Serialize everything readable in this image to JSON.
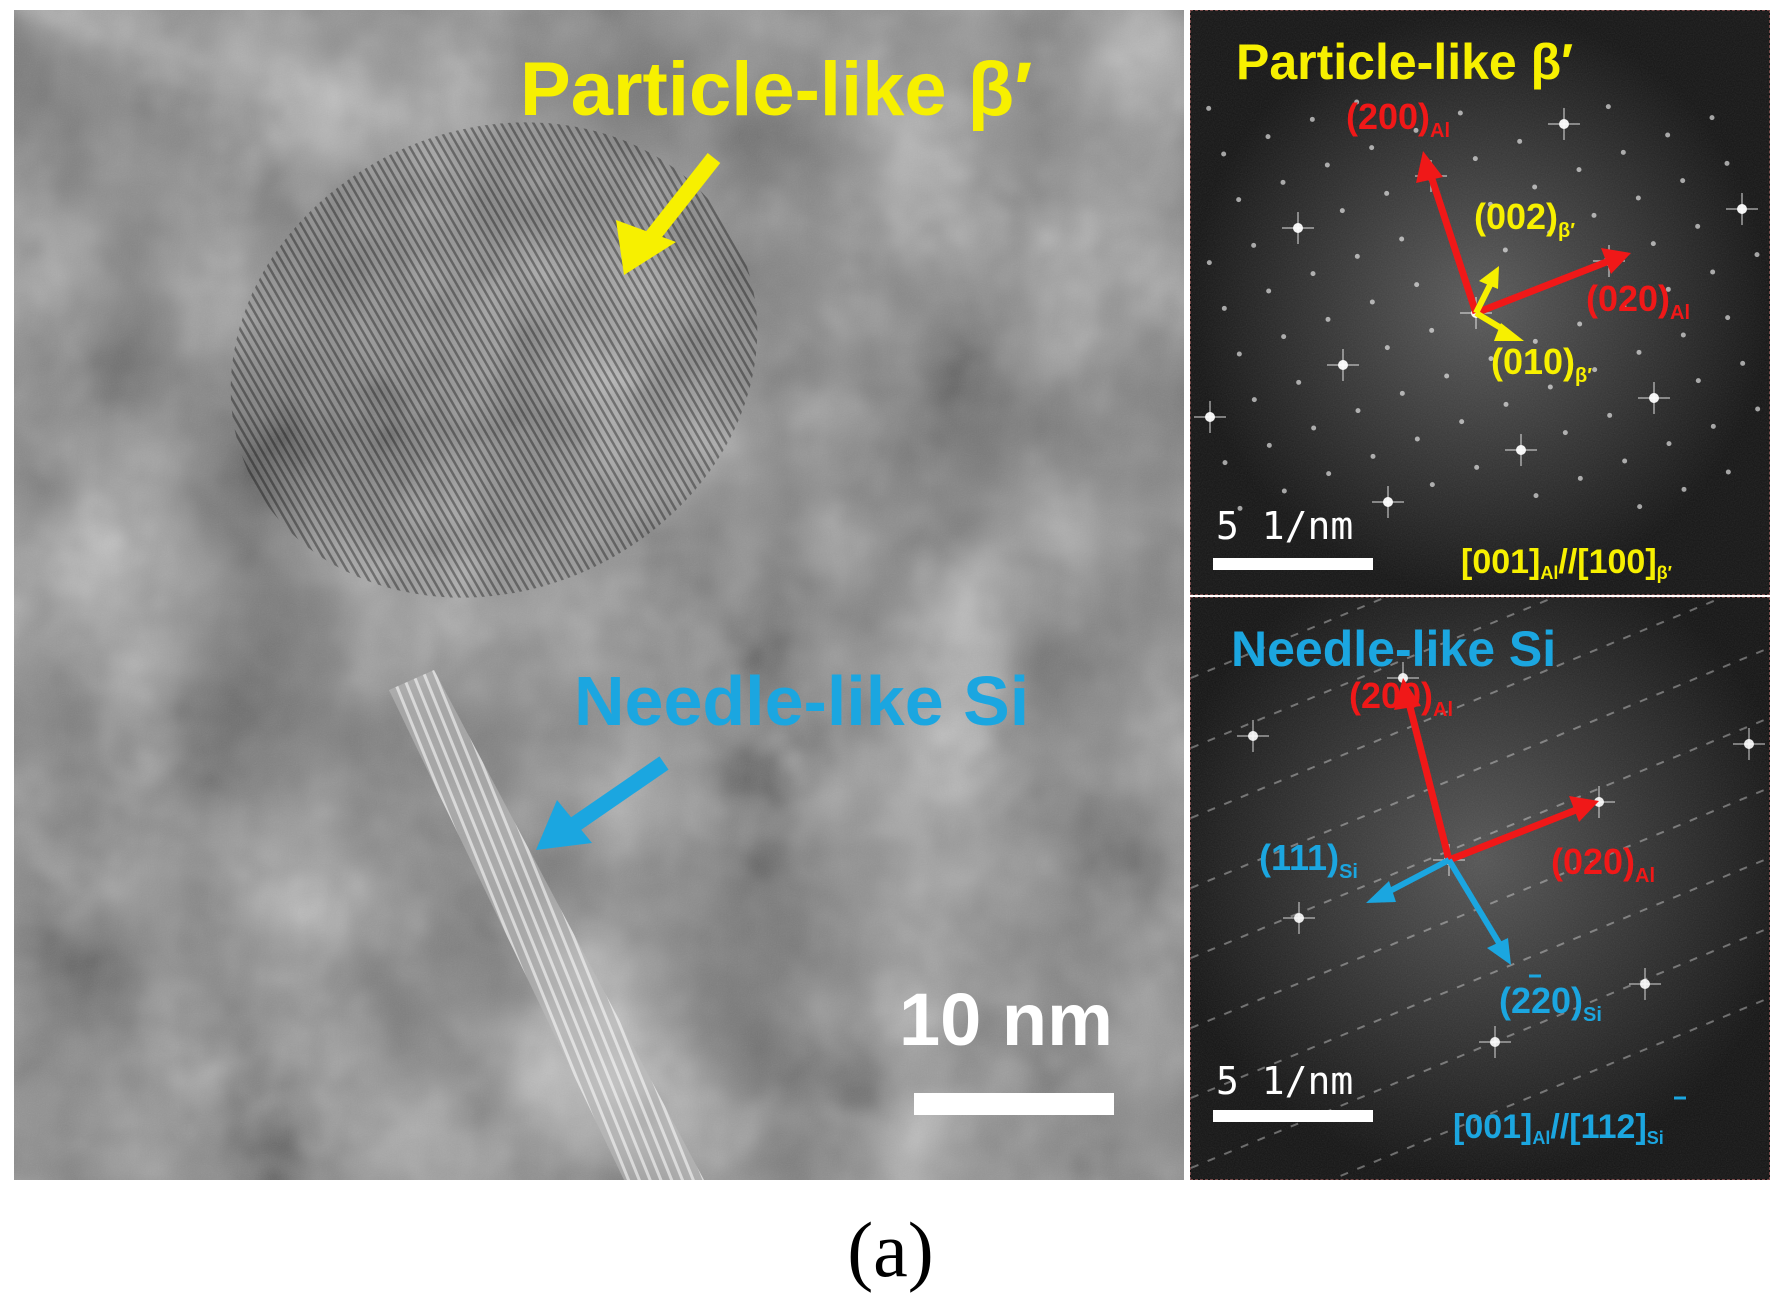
{
  "colors": {
    "yellow": "#f7f000",
    "blue": "#1ba6e0",
    "red": "#f01818",
    "white": "#ffffff"
  },
  "hrtem": {
    "label_particle": "Particle-like β′",
    "label_needle": "Needle-like Si",
    "scale_bar": "10 nm"
  },
  "fft_top": {
    "title": "Particle-like β′",
    "spot_200": {
      "base": "(200)",
      "sub": "Al"
    },
    "spot_020": {
      "base": "(020)",
      "sub": "Al"
    },
    "spot_002": {
      "base": "(002)",
      "sub": "β′"
    },
    "spot_010": {
      "base": "(010)",
      "sub": "β′"
    },
    "scale_bar": "5 1/nm",
    "zone_axis": {
      "a": "[001]",
      "a_sub": "Al",
      "sep": "//",
      "b": "[100]",
      "b_sub": "β′"
    }
  },
  "fft_bottom": {
    "title": "Needle-like Si",
    "spot_200": {
      "base": "(200)",
      "sub": "Al"
    },
    "spot_020": {
      "base": "(020)",
      "sub": "Al"
    },
    "spot_111": {
      "base": "(111)",
      "sub": "Si"
    },
    "spot_220": {
      "base": "(220)",
      "sub": "Si"
    },
    "scale_bar": "5 1/nm",
    "zone_axis": {
      "a": "[001]",
      "a_sub": "Al",
      "sep": "//",
      "b": "[112]",
      "b_sub": "Si"
    }
  },
  "caption": "(a)"
}
